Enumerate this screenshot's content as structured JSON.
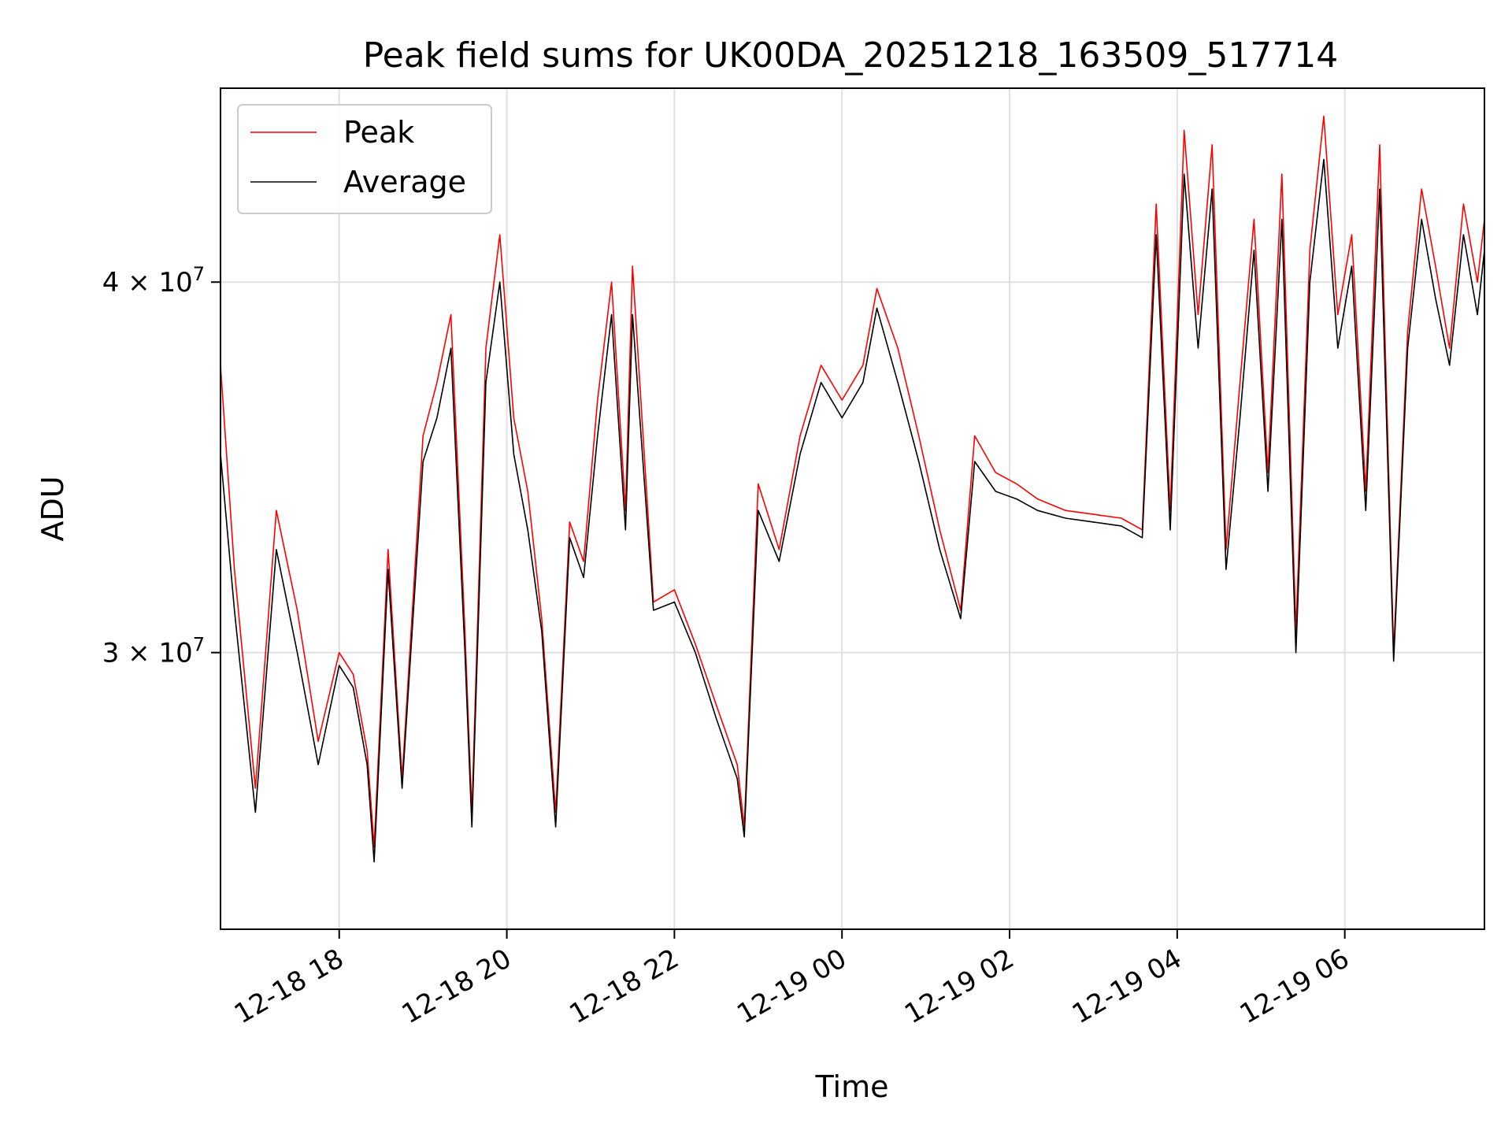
{
  "chart_data": {
    "type": "line",
    "title": "Peak field sums for UK00DA_20251218_163509_517714",
    "xlabel": "Time",
    "ylabel": "ADU",
    "xlim": [
      "2025-12-18 16:35",
      "2025-12-19 07:40"
    ],
    "ylim": [
      24200000,
      46500000
    ],
    "yscale": "log",
    "grid": true,
    "legend_position": "top-left",
    "x_ticks": [
      "12-18 18",
      "12-18 20",
      "12-18 22",
      "12-19 00",
      "12-19 02",
      "12-19 04",
      "12-19 06"
    ],
    "y_ticks": [
      {
        "value": 30000000,
        "mantissa": "3",
        "exponent": "7"
      },
      {
        "value": 40000000,
        "mantissa": "4",
        "exponent": "7"
      }
    ],
    "colors": {
      "Peak": "#ff0000",
      "Average": "#000000"
    },
    "x": [
      "2025-12-18 16:35",
      "2025-12-18 16:45",
      "2025-12-18 17:00",
      "2025-12-18 17:15",
      "2025-12-18 17:30",
      "2025-12-18 17:45",
      "2025-12-18 18:00",
      "2025-12-18 18:10",
      "2025-12-18 18:20",
      "2025-12-18 18:25",
      "2025-12-18 18:35",
      "2025-12-18 18:45",
      "2025-12-18 19:00",
      "2025-12-18 19:10",
      "2025-12-18 19:20",
      "2025-12-18 19:30",
      "2025-12-18 19:35",
      "2025-12-18 19:45",
      "2025-12-18 19:55",
      "2025-12-18 20:05",
      "2025-12-18 20:15",
      "2025-12-18 20:25",
      "2025-12-18 20:35",
      "2025-12-18 20:45",
      "2025-12-18 20:55",
      "2025-12-18 21:05",
      "2025-12-18 21:15",
      "2025-12-18 21:25",
      "2025-12-18 21:30",
      "2025-12-18 21:45",
      "2025-12-18 22:00",
      "2025-12-18 22:15",
      "2025-12-18 22:30",
      "2025-12-18 22:45",
      "2025-12-18 22:50",
      "2025-12-18 23:00",
      "2025-12-18 23:15",
      "2025-12-18 23:30",
      "2025-12-18 23:45",
      "2025-12-19 00:00",
      "2025-12-19 00:15",
      "2025-12-19 00:25",
      "2025-12-19 00:40",
      "2025-12-19 00:55",
      "2025-12-19 01:10",
      "2025-12-19 01:25",
      "2025-12-19 01:35",
      "2025-12-19 01:50",
      "2025-12-19 02:05",
      "2025-12-19 02:20",
      "2025-12-19 02:40",
      "2025-12-19 03:00",
      "2025-12-19 03:20",
      "2025-12-19 03:35",
      "2025-12-19 03:45",
      "2025-12-19 03:55",
      "2025-12-19 04:05",
      "2025-12-19 04:15",
      "2025-12-19 04:25",
      "2025-12-19 04:35",
      "2025-12-19 04:45",
      "2025-12-19 04:55",
      "2025-12-19 05:05",
      "2025-12-19 05:15",
      "2025-12-19 05:25",
      "2025-12-19 05:35",
      "2025-12-19 05:45",
      "2025-12-19 05:55",
      "2025-12-19 06:05",
      "2025-12-19 06:15",
      "2025-12-19 06:25",
      "2025-12-19 06:35",
      "2025-12-19 06:45",
      "2025-12-19 06:55",
      "2025-12-19 07:05",
      "2025-12-19 07:15",
      "2025-12-19 07:25",
      "2025-12-19 07:35",
      "2025-12-19 07:40"
    ],
    "series": [
      {
        "name": "Peak",
        "values": [
          37500000,
          32000000,
          27000000,
          33500000,
          31000000,
          28000000,
          30000000,
          29500000,
          27800000,
          25800000,
          32500000,
          27200000,
          35500000,
          37000000,
          39000000,
          30500000,
          26500000,
          38000000,
          41500000,
          36000000,
          34000000,
          30800000,
          26500000,
          33200000,
          32200000,
          36500000,
          40000000,
          33500000,
          40500000,
          31200000,
          31500000,
          30200000,
          28800000,
          27500000,
          26200000,
          34200000,
          32500000,
          35500000,
          37500000,
          36500000,
          37500000,
          39800000,
          38000000,
          35500000,
          33000000,
          31000000,
          35500000,
          34500000,
          34200000,
          33800000,
          33500000,
          33400000,
          33300000,
          33000000,
          42500000,
          33500000,
          45000000,
          39000000,
          44500000,
          32500000,
          37000000,
          42000000,
          34500000,
          43500000,
          30500000,
          41000000,
          45500000,
          39000000,
          41500000,
          34000000,
          44500000,
          30000000,
          38500000,
          43000000,
          40500000,
          38000000,
          42500000,
          40000000,
          42000000
        ]
      },
      {
        "name": "Average",
        "values": [
          35000000,
          31000000,
          26500000,
          32500000,
          30000000,
          27500000,
          29700000,
          29200000,
          27500000,
          25500000,
          32000000,
          27000000,
          34800000,
          36000000,
          38000000,
          30000000,
          26200000,
          37000000,
          40000000,
          35000000,
          33000000,
          30500000,
          26200000,
          32800000,
          31800000,
          35500000,
          39000000,
          33000000,
          39000000,
          31000000,
          31200000,
          30000000,
          28500000,
          27200000,
          26000000,
          33500000,
          32200000,
          35000000,
          37000000,
          36000000,
          37000000,
          39200000,
          37000000,
          34800000,
          32500000,
          30800000,
          34800000,
          34000000,
          33800000,
          33500000,
          33300000,
          33200000,
          33100000,
          32800000,
          41500000,
          33000000,
          43500000,
          38000000,
          43000000,
          32000000,
          36000000,
          41000000,
          34000000,
          42000000,
          30000000,
          40000000,
          44000000,
          38000000,
          40500000,
          33500000,
          43000000,
          29800000,
          38000000,
          42000000,
          39500000,
          37500000,
          41500000,
          39000000,
          41000000
        ]
      }
    ]
  }
}
